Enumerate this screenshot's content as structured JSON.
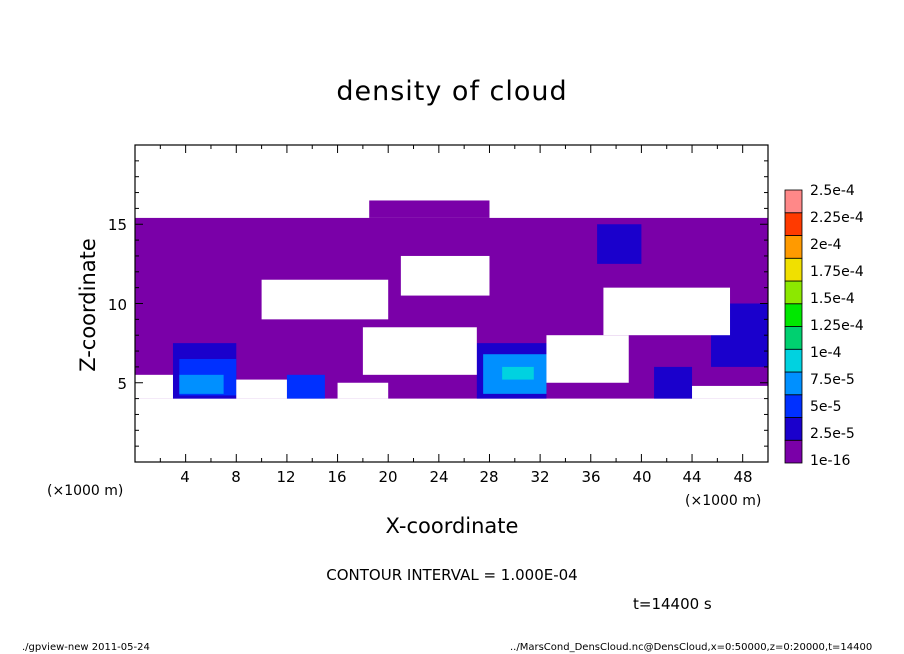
{
  "chart_data": {
    "type": "heatmap",
    "title": "density of cloud",
    "xlabel": "X-coordinate",
    "ylabel": "Z-coordinate",
    "x_unit": "(×1000 m)",
    "y_unit": "(×1000 m)",
    "xlim": [
      0,
      50
    ],
    "ylim": [
      0,
      20
    ],
    "x_ticks": [
      "4",
      "8",
      "12",
      "16",
      "20",
      "24",
      "28",
      "32",
      "36",
      "40",
      "44",
      "48"
    ],
    "y_ticks": [
      "5",
      "10",
      "15"
    ],
    "colorbar": {
      "levels": [
        "1e-16",
        "2.5e-5",
        "5e-5",
        "7.5e-5",
        "1e-4",
        "1.25e-4",
        "1.5e-4",
        "1.75e-4",
        "2e-4",
        "2.25e-4",
        "2.5e-4"
      ],
      "colors": [
        "#7a00a8",
        "#1a00cc",
        "#0030ff",
        "#0090ff",
        "#00d2e0",
        "#00d070",
        "#00e800",
        "#8ce800",
        "#f0e000",
        "#ff9a00",
        "#ff3a00",
        "#ff8888"
      ]
    },
    "regions": [
      {
        "x0": 0,
        "x1": 50,
        "z0": 4,
        "z1": 15.4,
        "level": 0
      },
      {
        "x0": 18.5,
        "x1": 28,
        "z0": 15.4,
        "z1": 16.5,
        "level": 0
      },
      {
        "x0": 3,
        "x1": 8,
        "z0": 4,
        "z1": 7.5,
        "level": 1
      },
      {
        "x0": 3.5,
        "x1": 8,
        "z0": 4.2,
        "z1": 6.5,
        "level": 2
      },
      {
        "x0": 3.5,
        "x1": 7,
        "z0": 4.3,
        "z1": 5.5,
        "level": 3
      },
      {
        "x0": 27,
        "x1": 32.5,
        "z0": 4,
        "z1": 7.5,
        "level": 1
      },
      {
        "x0": 27.5,
        "x1": 32.5,
        "z0": 4.3,
        "z1": 6.8,
        "level": 3
      },
      {
        "x0": 29,
        "x1": 31.5,
        "z0": 5.2,
        "z1": 6,
        "level": 4
      },
      {
        "x0": 12,
        "x1": 15,
        "z0": 4,
        "z1": 5.5,
        "level": 2
      },
      {
        "x0": 41,
        "x1": 44,
        "z0": 4,
        "z1": 6,
        "level": 1
      },
      {
        "x0": 45.5,
        "x1": 50,
        "z0": 6,
        "z1": 10,
        "level": 1
      },
      {
        "x0": 36.5,
        "x1": 40,
        "z0": 12.5,
        "z1": 15,
        "level": 1
      }
    ],
    "gaps": [
      {
        "x0": 16,
        "x1": 20,
        "z0": 4,
        "z1": 5
      },
      {
        "x0": 18,
        "x1": 27,
        "z0": 5.5,
        "z1": 8.5
      },
      {
        "x0": 21,
        "x1": 28,
        "z0": 10.5,
        "z1": 13
      },
      {
        "x0": 32.5,
        "x1": 39,
        "z0": 5,
        "z1": 8
      },
      {
        "x0": 37,
        "x1": 47,
        "z0": 8,
        "z1": 11
      },
      {
        "x0": 10,
        "x1": 20,
        "z0": 9,
        "z1": 11.5
      },
      {
        "x0": 0,
        "x1": 3,
        "z0": 4,
        "z1": 5.5
      },
      {
        "x0": 44,
        "x1": 50,
        "z0": 4,
        "z1": 4.8
      },
      {
        "x0": 8,
        "x1": 12,
        "z0": 4,
        "z1": 5.2
      }
    ]
  },
  "labels": {
    "contour_interval": "CONTOUR INTERVAL = 1.000E-04",
    "time": "t=14400 s",
    "footer_left": "./gpview-new  2011-05-24",
    "footer_right": "../MarsCond_DensCloud.nc@DensCloud,x=0:50000,z=0:20000,t=14400"
  }
}
